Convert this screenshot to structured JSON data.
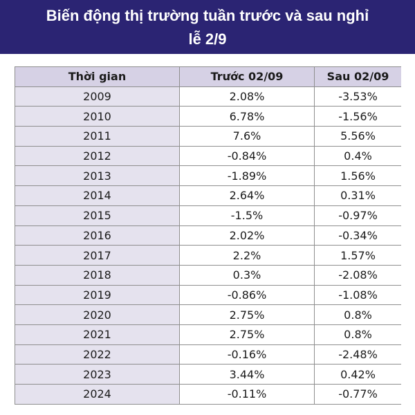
{
  "header": {
    "title": "Biến động thị trường tuần trước và sau nghỉ lễ 2/9"
  },
  "table": {
    "columns": [
      "Thời gian",
      "Trước 02/09",
      "Sau 02/09"
    ],
    "rows": [
      {
        "year": "2009",
        "before": "2.08%",
        "after": "-3.53%"
      },
      {
        "year": "2010",
        "before": "6.78%",
        "after": "-1.56%"
      },
      {
        "year": "2011",
        "before": "7.6%",
        "after": "5.56%"
      },
      {
        "year": "2012",
        "before": "-0.84%",
        "after": "0.4%"
      },
      {
        "year": "2013",
        "before": "-1.89%",
        "after": "1.56%"
      },
      {
        "year": "2014",
        "before": "2.64%",
        "after": "0.31%"
      },
      {
        "year": "2015",
        "before": "-1.5%",
        "after": "-0.97%"
      },
      {
        "year": "2016",
        "before": "2.02%",
        "after": "-0.34%"
      },
      {
        "year": "2017",
        "before": "2.2%",
        "after": "1.57%"
      },
      {
        "year": "2018",
        "before": "0.3%",
        "after": "-2.08%"
      },
      {
        "year": "2019",
        "before": "-0.86%",
        "after": "-1.08%"
      },
      {
        "year": "2020",
        "before": "2.75%",
        "after": "0.8%"
      },
      {
        "year": "2021",
        "before": "2.75%",
        "after": "0.8%"
      },
      {
        "year": "2022",
        "before": "-0.16%",
        "after": "-2.48%"
      },
      {
        "year": "2023",
        "before": "3.44%",
        "after": "0.42%"
      },
      {
        "year": "2024",
        "before": "-0.11%",
        "after": "-0.77%"
      }
    ]
  },
  "colors": {
    "banner": "#2b2473",
    "header_row": "#d6d1e5",
    "year_column": "#e5e2ee",
    "border": "#8e8e8e"
  }
}
